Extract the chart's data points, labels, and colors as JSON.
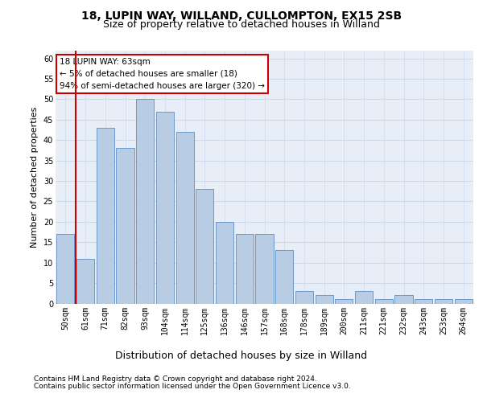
{
  "title1": "18, LUPIN WAY, WILLAND, CULLOMPTON, EX15 2SB",
  "title2": "Size of property relative to detached houses in Willand",
  "xlabel": "Distribution of detached houses by size in Willand",
  "ylabel": "Number of detached properties",
  "footnote1": "Contains HM Land Registry data © Crown copyright and database right 2024.",
  "footnote2": "Contains public sector information licensed under the Open Government Licence v3.0.",
  "categories": [
    "50sqm",
    "61sqm",
    "71sqm",
    "82sqm",
    "93sqm",
    "104sqm",
    "114sqm",
    "125sqm",
    "136sqm",
    "146sqm",
    "157sqm",
    "168sqm",
    "178sqm",
    "189sqm",
    "200sqm",
    "211sqm",
    "221sqm",
    "232sqm",
    "243sqm",
    "253sqm",
    "264sqm"
  ],
  "values": [
    17,
    11,
    43,
    38,
    50,
    47,
    42,
    28,
    20,
    17,
    17,
    13,
    3,
    2,
    1,
    3,
    1,
    2,
    1,
    1,
    1
  ],
  "bar_color": "#b8cce4",
  "bar_edge_color": "#5b8fc9",
  "highlight_color": "#cc0000",
  "annotation_text": "18 LUPIN WAY: 63sqm\n← 5% of detached houses are smaller (18)\n94% of semi-detached houses are larger (320) →",
  "annotation_box_color": "#cc0000",
  "ylim": [
    0,
    62
  ],
  "yticks": [
    0,
    5,
    10,
    15,
    20,
    25,
    30,
    35,
    40,
    45,
    50,
    55,
    60
  ],
  "grid_color": "#c8d4e8",
  "background_color": "#e8eef8",
  "title1_fontsize": 10,
  "title2_fontsize": 9,
  "xlabel_fontsize": 9,
  "ylabel_fontsize": 8,
  "tick_fontsize": 7,
  "annotation_fontsize": 7.5,
  "footnote_fontsize": 6.5
}
